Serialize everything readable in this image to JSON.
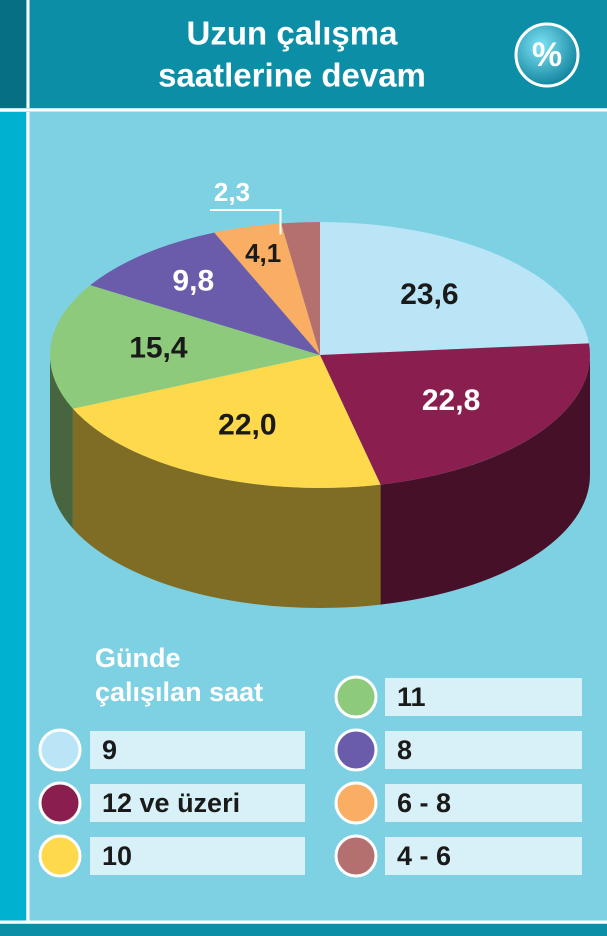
{
  "chart_data": {
    "type": "pie3d",
    "title": [
      "Uzun çalışma",
      "saatlerine devam"
    ],
    "badge": "%",
    "legend_title": [
      "Günde",
      "çalışılan saat"
    ],
    "categories": [
      "9",
      "12 ve üzeri",
      "10",
      "11",
      "8",
      "6 - 8",
      "4 - 6"
    ],
    "values": [
      23.6,
      22.8,
      22.0,
      15.4,
      9.8,
      4.1,
      2.3
    ],
    "value_labels": [
      "23,6",
      "22,8",
      "22,0",
      "15,4",
      "9,8",
      "4,1",
      "2,3"
    ],
    "colors": [
      "#b9e5f6",
      "#8a1f4f",
      "#fdd94b",
      "#8dca7c",
      "#6a5bab",
      "#f9ae63",
      "#b4706e"
    ]
  }
}
